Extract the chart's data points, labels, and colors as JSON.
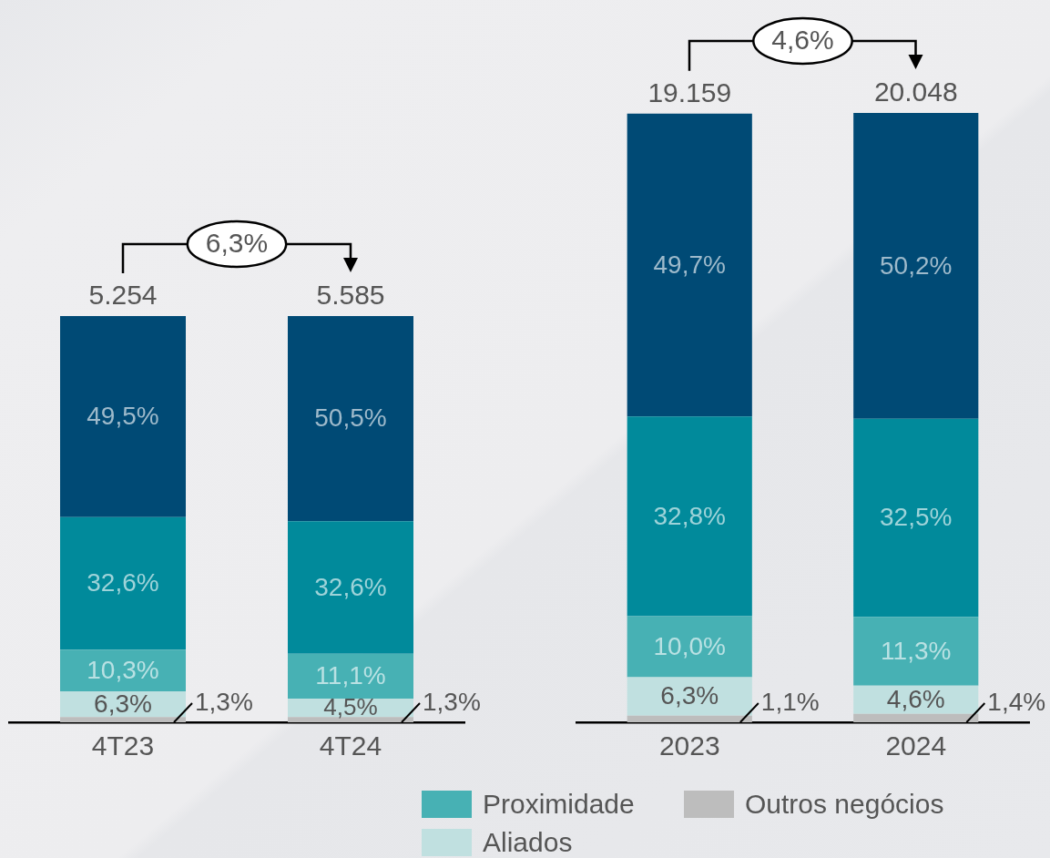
{
  "chart_data": [
    {
      "type": "bar",
      "stacked": true,
      "categories": [
        "4T23",
        "4T24"
      ],
      "tick_labels": "x",
      "legend": "bottom",
      "series": [
        {
          "name": "Outros negócios",
          "color": "#bdbdbd",
          "values": [
            1.3,
            1.3
          ],
          "value_labels": [
            "1,3%",
            "1,3%"
          ]
        },
        {
          "name": "Aliados",
          "color": "#c0e0e0",
          "values": [
            6.3,
            4.5
          ],
          "value_labels": [
            "6,3%",
            "4,5%"
          ]
        },
        {
          "name": "Proximidade",
          "color": "#47b1b4",
          "values": [
            10.3,
            11.1
          ],
          "value_labels": [
            "10,3%",
            "11,1%"
          ]
        },
        {
          "color": "#018a9b",
          "values": [
            32.6,
            32.6
          ],
          "value_labels": [
            "32,6%",
            "32,6%"
          ]
        },
        {
          "color": "#004a75",
          "values": [
            49.5,
            50.5
          ],
          "value_labels": [
            "49,5%",
            "50,5%"
          ]
        }
      ],
      "annotations": [
        "5.254",
        "5.585",
        "6,3%"
      ]
    },
    {
      "type": "bar",
      "stacked": true,
      "categories": [
        "2023",
        "2024"
      ],
      "tick_labels": "x",
      "series": [
        {
          "name": "Outros negócios",
          "color": "#bdbdbd",
          "values": [
            1.1,
            1.4
          ],
          "value_labels": [
            "1,1%",
            "1,4%"
          ]
        },
        {
          "name": "Aliados",
          "color": "#c0e0e0",
          "values": [
            6.3,
            4.6
          ],
          "value_labels": [
            "6,3%",
            "4,6%"
          ]
        },
        {
          "name": "Proximidade",
          "color": "#47b1b4",
          "values": [
            10.0,
            11.3
          ],
          "value_labels": [
            "10,0%",
            "11,3%"
          ]
        },
        {
          "color": "#018a9b",
          "values": [
            32.8,
            32.5
          ],
          "value_labels": [
            "32,8%",
            "32,5%"
          ]
        },
        {
          "color": "#004a75",
          "values": [
            49.7,
            50.2
          ],
          "value_labels": [
            "49,7%",
            "50,2%"
          ]
        }
      ],
      "annotations": [
        "19.159",
        "20.048",
        "4,6%"
      ]
    }
  ]
}
